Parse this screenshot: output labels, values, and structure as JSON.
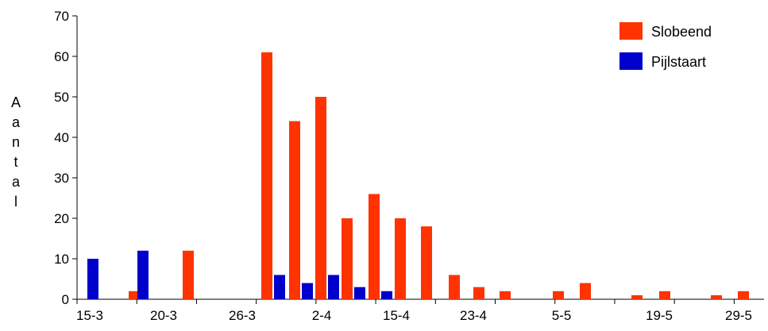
{
  "chart_data": {
    "type": "bar",
    "title": "",
    "xlabel": "",
    "ylabel": "Aantal",
    "ylim": [
      0,
      70
    ],
    "yticks": [
      0,
      10,
      20,
      30,
      40,
      50,
      60,
      70
    ],
    "x_tick_labels": [
      "15-3",
      "20-3",
      "26-3",
      "2-4",
      "15-4",
      "23-4",
      "5-5",
      "19-5",
      "29-5"
    ],
    "legend_position": "top-right",
    "grid": false,
    "series": [
      {
        "name": "Slobeend",
        "color": "#FF3300",
        "values": [
          0,
          2,
          12,
          0,
          61,
          44,
          50,
          20,
          26,
          20,
          18,
          6,
          3,
          2,
          0,
          2,
          4,
          0,
          1,
          2,
          0,
          1,
          2
        ]
      },
      {
        "name": "Pijlstaart",
        "color": "#0000CC",
        "values": [
          10,
          12,
          0,
          0,
          6,
          4,
          6,
          3,
          2,
          0,
          0,
          0,
          0,
          0,
          0,
          0,
          0,
          0,
          0,
          0,
          0,
          0,
          0
        ]
      }
    ]
  }
}
